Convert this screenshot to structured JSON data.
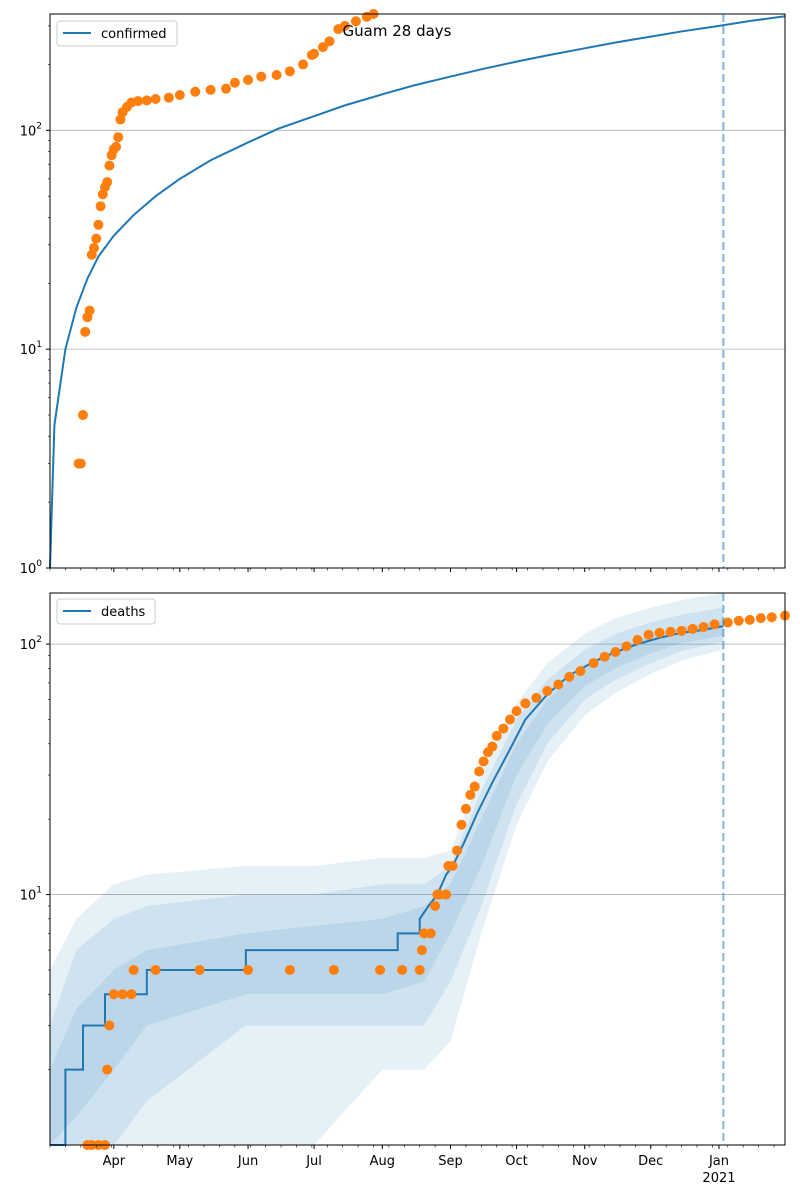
{
  "figure": {
    "title": "Guam 28 days",
    "forecast_date": "2021-01-03"
  },
  "colors": {
    "series_line": "#1f77b4",
    "observed_points": "#ff7f0e",
    "band": "#1f77b4",
    "forecast_line": "#1f77b4",
    "grid": "#b0b0b0"
  },
  "x_axis": {
    "type": "date",
    "range": [
      "2020-03-03",
      "2021-01-31"
    ],
    "ticks": [
      {
        "date": "2020-04-01",
        "label": "Apr"
      },
      {
        "date": "2020-05-01",
        "label": "May"
      },
      {
        "date": "2020-06-01",
        "label": "Jun"
      },
      {
        "date": "2020-07-01",
        "label": "Jul"
      },
      {
        "date": "2020-08-01",
        "label": "Aug"
      },
      {
        "date": "2020-09-01",
        "label": "Sep"
      },
      {
        "date": "2020-10-01",
        "label": "Oct"
      },
      {
        "date": "2020-11-01",
        "label": "Nov"
      },
      {
        "date": "2020-12-01",
        "label": "Dec"
      },
      {
        "date": "2021-01-01",
        "label": "Jan",
        "sublabel": "2021"
      }
    ]
  },
  "chart_data": [
    {
      "type": "line",
      "name": "confirmed-panel",
      "yscale": "log",
      "ylim": [
        1,
        340
      ],
      "yticks": [
        {
          "value": 1,
          "base": "10",
          "exp": "0"
        },
        {
          "value": 10,
          "base": "10",
          "exp": "1"
        },
        {
          "value": 100,
          "base": "10",
          "exp": "2"
        }
      ],
      "grid": "horizontal",
      "legend": {
        "position": "top-left",
        "label": "confirmed"
      },
      "series": [
        {
          "name": "confirmed",
          "kind": "model-line",
          "x": [
            "2020-03-03",
            "2020-03-05",
            "2020-03-10",
            "2020-03-15",
            "2020-03-20",
            "2020-03-25",
            "2020-04-01",
            "2020-04-10",
            "2020-04-20",
            "2020-05-01",
            "2020-05-15",
            "2020-06-01",
            "2020-06-15",
            "2020-07-01",
            "2020-07-15",
            "2020-08-01",
            "2020-08-15",
            "2020-09-01",
            "2020-09-15",
            "2020-10-01",
            "2020-10-15",
            "2020-11-01",
            "2020-11-15",
            "2020-12-01",
            "2020-12-15",
            "2021-01-01",
            "2021-01-15",
            "2021-01-31"
          ],
          "y": [
            1,
            4.5,
            10,
            15.5,
            21,
            26.5,
            33,
            41,
            50,
            60,
            73,
            88,
            102,
            116,
            130,
            146,
            160,
            176,
            190,
            206,
            220,
            237,
            252,
            268,
            283,
            300,
            316,
            332
          ]
        },
        {
          "name": "confirmed-observed",
          "kind": "observed-points",
          "x": [
            "2020-03-16",
            "2020-03-17",
            "2020-03-18",
            "2020-03-19",
            "2020-03-20",
            "2020-03-21",
            "2020-03-22",
            "2020-03-23",
            "2020-03-24",
            "2020-03-25",
            "2020-03-26",
            "2020-03-27",
            "2020-03-28",
            "2020-03-29",
            "2020-03-30",
            "2020-03-31",
            "2020-04-01",
            "2020-04-02",
            "2020-04-03",
            "2020-04-04",
            "2020-04-05",
            "2020-04-07",
            "2020-04-09",
            "2020-04-12",
            "2020-04-16",
            "2020-04-20",
            "2020-04-26",
            "2020-05-01",
            "2020-05-08",
            "2020-05-15",
            "2020-05-22",
            "2020-05-26",
            "2020-06-01",
            "2020-06-07",
            "2020-06-14",
            "2020-06-20",
            "2020-06-26",
            "2020-06-30",
            "2020-07-01",
            "2020-07-05",
            "2020-07-08",
            "2020-07-12",
            "2020-07-15",
            "2020-07-20",
            "2020-07-25",
            "2020-07-28"
          ],
          "y": [
            3,
            3,
            5,
            12,
            14,
            15,
            27,
            29,
            32,
            37,
            45,
            51,
            55,
            58,
            69,
            77,
            82,
            84,
            93,
            112,
            121,
            128,
            134,
            136,
            137,
            139,
            141,
            145,
            150,
            153,
            155,
            165,
            170,
            176,
            179,
            186,
            200,
            221,
            224,
            240,
            255,
            290,
            300,
            315,
            330,
            340
          ]
        }
      ]
    },
    {
      "type": "line",
      "name": "deaths-panel",
      "yscale": "log",
      "ylim": [
        1,
        160
      ],
      "yticks": [
        {
          "value": 10,
          "base": "10",
          "exp": "1"
        },
        {
          "value": 100,
          "base": "10",
          "exp": "2"
        }
      ],
      "grid": "horizontal",
      "legend": {
        "position": "top-left",
        "label": "deaths"
      },
      "series": [
        {
          "name": "deaths",
          "kind": "model-step-line",
          "x": [
            "2020-03-03",
            "2020-03-10",
            "2020-03-10",
            "2020-03-18",
            "2020-03-18",
            "2020-03-28",
            "2020-03-28",
            "2020-04-16",
            "2020-04-16",
            "2020-05-31",
            "2020-05-31",
            "2020-08-08",
            "2020-08-08",
            "2020-08-18",
            "2020-08-18",
            "2020-08-22",
            "2020-08-26",
            "2020-08-30",
            "2020-09-02",
            "2020-09-07",
            "2020-09-13",
            "2020-09-20",
            "2020-09-28",
            "2020-10-05",
            "2020-10-15",
            "2020-10-25",
            "2020-11-05",
            "2020-11-15",
            "2020-11-25",
            "2020-12-05",
            "2020-12-15",
            "2020-12-25",
            "2021-01-03"
          ],
          "y": [
            1,
            1,
            2,
            2,
            3,
            3,
            4,
            4,
            5,
            5,
            6,
            6,
            7,
            7,
            8,
            9,
            10,
            12,
            13,
            16,
            21,
            28,
            38,
            50,
            63,
            75,
            85,
            93,
            100,
            106,
            111,
            114,
            118
          ]
        },
        {
          "name": "deaths-band-outer",
          "kind": "uncertainty-band",
          "x": [
            "2020-03-03",
            "2020-03-15",
            "2020-04-01",
            "2020-04-16",
            "2020-05-31",
            "2020-07-01",
            "2020-08-01",
            "2020-08-20",
            "2020-09-01",
            "2020-09-15",
            "2020-10-01",
            "2020-10-15",
            "2020-11-01",
            "2020-11-15",
            "2020-12-01",
            "2020-12-15",
            "2021-01-03"
          ],
          "lower": [
            1,
            1,
            1,
            1,
            1,
            1,
            2,
            2,
            2.6,
            7,
            19,
            34,
            52,
            64,
            76,
            86,
            95
          ],
          "upper": [
            5,
            8,
            11,
            12,
            13,
            13,
            14,
            14,
            15,
            30,
            58,
            84,
            110,
            127,
            140,
            150,
            160
          ]
        },
        {
          "name": "deaths-band-mid",
          "kind": "uncertainty-band",
          "x": [
            "2020-03-03",
            "2020-03-15",
            "2020-04-01",
            "2020-04-16",
            "2020-05-31",
            "2020-07-01",
            "2020-08-01",
            "2020-08-20",
            "2020-09-01",
            "2020-09-15",
            "2020-10-01",
            "2020-10-15",
            "2020-11-01",
            "2020-11-15",
            "2020-12-01",
            "2020-12-15",
            "2021-01-03"
          ],
          "lower": [
            1,
            1,
            1,
            1.5,
            3,
            3,
            3,
            3,
            4.5,
            9,
            23,
            40,
            60,
            72,
            84,
            94,
            102
          ],
          "upper": [
            3,
            6,
            8,
            9,
            10,
            10,
            11,
            11,
            13,
            26,
            50,
            72,
            95,
            110,
            122,
            131,
            140
          ]
        },
        {
          "name": "deaths-band-inner",
          "kind": "uncertainty-band",
          "x": [
            "2020-03-03",
            "2020-03-15",
            "2020-04-01",
            "2020-04-16",
            "2020-05-31",
            "2020-07-01",
            "2020-08-01",
            "2020-08-20",
            "2020-09-01",
            "2020-09-15",
            "2020-10-01",
            "2020-10-15",
            "2020-11-01",
            "2020-11-15",
            "2020-12-01",
            "2020-12-15",
            "2021-01-03"
          ],
          "lower": [
            1,
            1.3,
            2,
            3,
            4,
            4,
            4,
            4.5,
            7,
            13,
            30,
            48,
            68,
            80,
            92,
            101,
            108
          ],
          "upper": [
            2,
            3.5,
            5,
            6,
            7,
            7.5,
            8,
            9,
            11,
            20,
            40,
            60,
            82,
            96,
            108,
            117,
            125
          ]
        },
        {
          "name": "deaths-observed",
          "kind": "observed-points",
          "x": [
            "2020-03-20",
            "2020-03-22",
            "2020-03-25",
            "2020-03-28",
            "2020-03-29",
            "2020-03-30",
            "2020-04-01",
            "2020-04-05",
            "2020-04-09",
            "2020-04-10",
            "2020-04-20",
            "2020-05-10",
            "2020-06-01",
            "2020-06-20",
            "2020-07-10",
            "2020-07-31",
            "2020-08-10",
            "2020-08-18",
            "2020-08-19",
            "2020-08-20",
            "2020-08-23",
            "2020-08-25",
            "2020-08-26",
            "2020-08-27",
            "2020-08-30",
            "2020-08-31",
            "2020-09-02",
            "2020-09-04",
            "2020-09-06",
            "2020-09-08",
            "2020-09-10",
            "2020-09-12",
            "2020-09-14",
            "2020-09-16",
            "2020-09-18",
            "2020-09-20",
            "2020-09-22",
            "2020-09-25",
            "2020-09-28",
            "2020-10-01",
            "2020-10-05",
            "2020-10-10",
            "2020-10-15",
            "2020-10-20",
            "2020-10-25",
            "2020-10-30",
            "2020-11-05",
            "2020-11-10",
            "2020-11-15",
            "2020-11-20",
            "2020-11-25",
            "2020-11-30",
            "2020-12-05",
            "2020-12-10",
            "2020-12-15",
            "2020-12-20",
            "2020-12-25",
            "2020-12-30",
            "2021-01-05",
            "2021-01-10",
            "2021-01-15",
            "2021-01-20",
            "2021-01-25",
            "2021-01-31"
          ],
          "y": [
            1,
            1,
            1,
            1,
            2,
            3,
            4,
            4,
            4,
            5,
            5,
            5,
            5,
            5,
            5,
            5,
            5,
            5,
            6,
            7,
            7,
            9,
            10,
            10,
            10,
            13,
            13,
            15,
            19,
            22,
            25,
            27,
            31,
            34,
            37,
            39,
            43,
            46,
            50,
            54,
            58,
            61,
            65,
            69,
            74,
            78,
            84,
            89,
            93,
            98,
            104,
            109,
            111,
            112,
            113,
            115,
            117,
            120,
            122,
            124,
            125,
            127,
            128,
            130
          ]
        }
      ]
    }
  ]
}
